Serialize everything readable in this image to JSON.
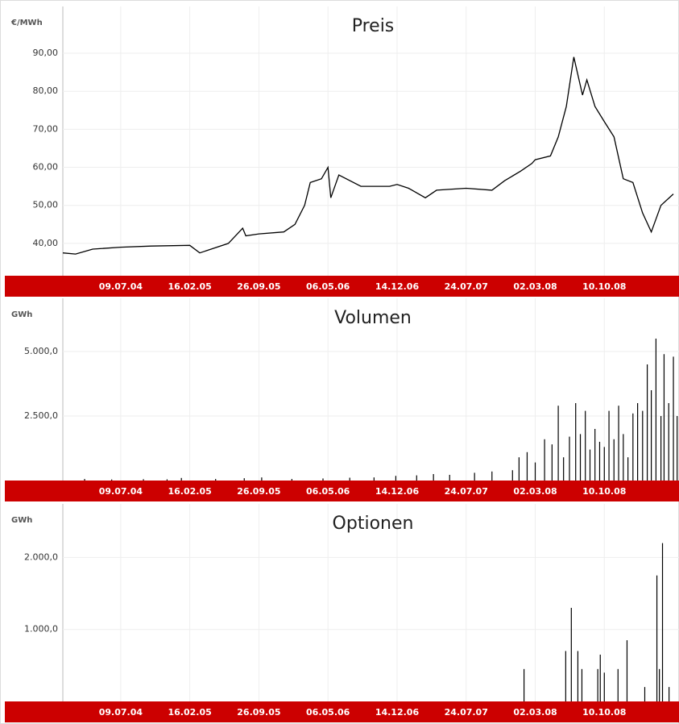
{
  "chart_data": [
    {
      "type": "line",
      "title": "Preis",
      "y_label": "€/MWh",
      "color": "#000000",
      "grid": true,
      "x": [
        "05.01.04",
        "15.02.04",
        "10.04.04",
        "09.07.04",
        "15.10.04",
        "16.02.05",
        "20.03.05",
        "20.06.05",
        "05.08.05",
        "15.08.05",
        "26.09.05",
        "15.12.05",
        "20.01.06",
        "20.02.06",
        "10.03.06",
        "15.04.06",
        "06.05.06",
        "15.05.06",
        "10.06.06",
        "20.08.06",
        "20.11.06",
        "14.12.06",
        "20.01.07",
        "15.03.07",
        "20.04.07",
        "24.07.07",
        "15.10.07",
        "25.11.07",
        "15.01.08",
        "20.02.08",
        "02.03.08",
        "20.04.08",
        "15.05.08",
        "10.06.08",
        "04.07.08",
        "01.08.08",
        "15.08.08",
        "10.09.08",
        "10.10.08",
        "10.11.08",
        "10.12.08",
        "10.01.09",
        "10.02.09",
        "10.03.09",
        "10.04.09",
        "20.05.09"
      ],
      "values": [
        37.5,
        37.2,
        38.5,
        39,
        39.3,
        39.5,
        37.5,
        40,
        44,
        42,
        42.5,
        43,
        45,
        50,
        56,
        57,
        60,
        52,
        58,
        55,
        55,
        55.5,
        54.5,
        52,
        54,
        54.5,
        54,
        56.5,
        59,
        61,
        62,
        63,
        68,
        76,
        89,
        79,
        83,
        76,
        72,
        68,
        57,
        56,
        48,
        43,
        50,
        53
      ],
      "xlim": [
        "05.01.04",
        "07.06.09"
      ],
      "xticks": [
        "09.07.04",
        "16.02.05",
        "26.09.05",
        "06.05.06",
        "14.12.06",
        "24.07.07",
        "02.03.08",
        "10.10.08"
      ],
      "ylim": [
        31.5,
        102.3
      ],
      "yticks": [
        {
          "value": 40,
          "label": "40,00"
        },
        {
          "value": 50,
          "label": "50,00"
        },
        {
          "value": 60,
          "label": "60,00"
        },
        {
          "value": 70,
          "label": "70,00"
        },
        {
          "value": 80,
          "label": "80,00"
        },
        {
          "value": 90,
          "label": "90,00"
        }
      ]
    },
    {
      "type": "bar",
      "title": "Volumen",
      "y_label": "GWh",
      "color": "#000000",
      "grid": true,
      "x": [
        "15.03.04",
        "10.06.04",
        "20.09.04",
        "05.12.04",
        "20.01.05",
        "10.05.05",
        "10.08.05",
        "05.10.05",
        "10.01.06",
        "20.04.06",
        "15.07.06",
        "01.10.06",
        "10.12.06",
        "15.02.07",
        "10.04.07",
        "01.06.07",
        "20.08.07",
        "15.10.07",
        "20.12.07",
        "10.01.08",
        "05.02.08",
        "02.03.08",
        "01.04.08",
        "25.04.08",
        "15.05.08",
        "01.06.08",
        "20.06.08",
        "10.07.08",
        "25.07.08",
        "10.08.08",
        "25.08.08",
        "10.09.08",
        "25.09.08",
        "10.10.08",
        "25.10.08",
        "10.11.08",
        "25.11.08",
        "10.12.08",
        "25.12.08",
        "10.01.09",
        "25.01.09",
        "10.02.09",
        "25.02.09",
        "10.03.09",
        "25.03.09",
        "10.04.09",
        "20.04.09",
        "05.05.09",
        "20.05.09",
        "01.06.09"
      ],
      "values": [
        60,
        40,
        50,
        45,
        100,
        60,
        90,
        120,
        60,
        80,
        110,
        120,
        180,
        200,
        250,
        220,
        300,
        350,
        400,
        900,
        1100,
        700,
        1600,
        1400,
        2900,
        900,
        1700,
        3000,
        1800,
        2700,
        1200,
        2000,
        1500,
        1300,
        2700,
        1600,
        2900,
        1800,
        900,
        2600,
        3000,
        2700,
        4500,
        3500,
        5500,
        2500,
        4900,
        3000,
        4800,
        2500
      ],
      "xlim": [
        "05.01.04",
        "07.06.09"
      ],
      "xticks": [
        "09.07.04",
        "16.02.05",
        "26.09.05",
        "06.05.06",
        "14.12.06",
        "24.07.07",
        "02.03.08",
        "10.10.08"
      ],
      "ylim": [
        0,
        7062
      ],
      "yticks": [
        {
          "value": 2500,
          "label": "2.500,0"
        },
        {
          "value": 5000,
          "label": "5.000,0"
        }
      ]
    },
    {
      "type": "bar",
      "title": "Optionen",
      "y_label": "GWh",
      "color": "#000000",
      "grid": true,
      "x": [
        "26.01.08",
        "08.06.08",
        "26.06.08",
        "17.07.08",
        "30.07.08",
        "19.09.08",
        "27.09.08",
        "10.10.08",
        "23.11.08",
        "22.12.08",
        "17.02.09",
        "28.03.09",
        "05.04.09",
        "15.04.09",
        "06.05.09"
      ],
      "values": [
        450,
        700,
        1300,
        700,
        450,
        450,
        650,
        400,
        450,
        850,
        200,
        1750,
        450,
        2200,
        200
      ],
      "xlim": [
        "05.01.04",
        "07.06.09"
      ],
      "xticks": [
        "09.07.04",
        "16.02.05",
        "26.09.05",
        "06.05.06",
        "14.12.06",
        "24.07.07",
        "02.03.08",
        "10.10.08"
      ],
      "ylim": [
        0,
        2744
      ],
      "yticks": [
        {
          "value": 1000,
          "label": "1.000,0"
        },
        {
          "value": 2000,
          "label": "2.000,0"
        }
      ]
    }
  ]
}
